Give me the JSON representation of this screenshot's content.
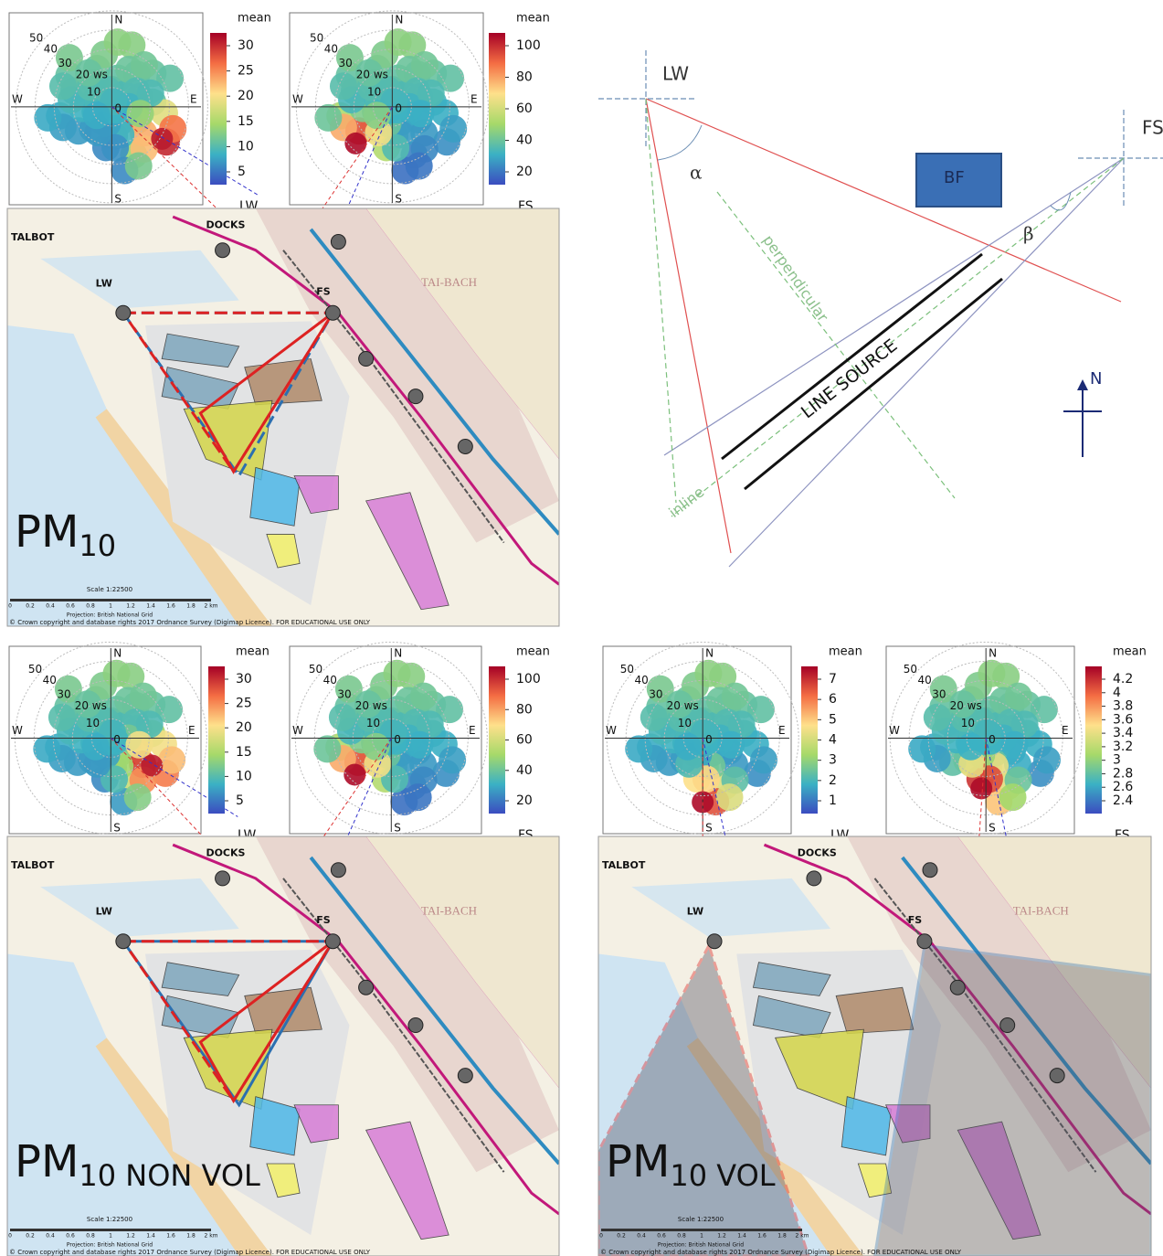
{
  "panels": [
    {
      "polar_plots": [
        {
          "radial_labels": [
            "50",
            "40",
            "30",
            "20 ws",
            "10",
            "0"
          ],
          "compass": [
            "N",
            "E",
            "S",
            "W"
          ],
          "legend_title": "mean",
          "colorbar_ticks": [
            30,
            25,
            20,
            15,
            10,
            5
          ],
          "site": "LW"
        },
        {
          "radial_labels": [
            "50",
            "40",
            "30",
            "20 ws",
            "10",
            "0"
          ],
          "compass": [
            "N",
            "E",
            "S",
            "W"
          ],
          "legend_title": "mean",
          "colorbar_ticks": [
            100,
            80,
            60,
            40,
            20
          ],
          "site": "FS"
        }
      ],
      "map": {
        "places": [
          "TALBOT",
          "DOCKS",
          "LW",
          "FS",
          "TAI-BACH"
        ],
        "pollutant": "PM",
        "subscript": "10",
        "scale_title": "Scale 1:22500",
        "scale_ticks": [
          "0",
          "0.2",
          "0.4",
          "0.6",
          "0.8",
          "1",
          "1.2",
          "1.4",
          "1.6",
          "1.8",
          "2 km"
        ],
        "projection": "Projection: British National Grid",
        "copyright": "© Crown copyright and database rights 2017 Ordnance Survey (Digimap Licence). FOR EDUCATIONAL USE ONLY"
      }
    },
    {
      "polar_plots": [
        {
          "radial_labels": [
            "50",
            "40",
            "30",
            "20 ws",
            "10",
            "0"
          ],
          "compass": [
            "N",
            "E",
            "S",
            "W"
          ],
          "legend_title": "mean",
          "colorbar_ticks": [
            30,
            25,
            20,
            15,
            10,
            5
          ],
          "site": "LW"
        },
        {
          "radial_labels": [
            "50",
            "40",
            "30",
            "20 ws",
            "10",
            "0"
          ],
          "compass": [
            "N",
            "E",
            "S",
            "W"
          ],
          "legend_title": "mean",
          "colorbar_ticks": [
            100,
            80,
            60,
            40,
            20
          ],
          "site": "FS"
        }
      ],
      "map": {
        "places": [
          "TALBOT",
          "DOCKS",
          "LW",
          "FS",
          "TAI-BACH"
        ],
        "pollutant": "PM",
        "subscript": "10 NON VOL",
        "scale_title": "Scale 1:22500",
        "scale_ticks": [
          "0",
          "0.2",
          "0.4",
          "0.6",
          "0.8",
          "1",
          "1.2",
          "1.4",
          "1.6",
          "1.8",
          "2 km"
        ],
        "projection": "Projection: British National Grid",
        "copyright": "© Crown copyright and database rights 2017 Ordnance Survey (Digimap Licence). FOR EDUCATIONAL USE ONLY"
      }
    },
    {
      "polar_plots": [
        {
          "radial_labels": [
            "50",
            "40",
            "30",
            "20 ws",
            "10",
            "0"
          ],
          "compass": [
            "N",
            "E",
            "S",
            "W"
          ],
          "legend_title": "mean",
          "colorbar_ticks": [
            7,
            6,
            5,
            4,
            3,
            2,
            1
          ],
          "site": "LW"
        },
        {
          "radial_labels": [
            "50",
            "40",
            "30",
            "20 ws",
            "10",
            "0"
          ],
          "compass": [
            "N",
            "E",
            "S",
            "W"
          ],
          "legend_title": "mean",
          "colorbar_ticks": [
            4.2,
            4,
            3.8,
            3.6,
            3.4,
            3.2,
            3,
            2.8,
            2.6,
            2.4
          ],
          "site": "FS"
        }
      ],
      "map": {
        "places": [
          "TALBOT",
          "DOCKS",
          "LW",
          "FS",
          "TAI-BACH"
        ],
        "pollutant": "PM",
        "subscript": "10 VOL",
        "scale_title": "Scale 1:22500",
        "scale_ticks": [
          "0",
          "0.2",
          "0.4",
          "0.6",
          "0.8",
          "1",
          "1.2",
          "1.4",
          "1.6",
          "1.8",
          "2 km"
        ],
        "projection": "Projection: British National Grid",
        "copyright": "© Crown copyright and database rights 2017 Ordnance Survey (Digimap Licence). FOR EDUCATIONAL USE ONLY"
      }
    }
  ],
  "diagram": {
    "receptors": [
      "LW",
      "FS"
    ],
    "building": "BF",
    "angles": [
      "α",
      "β"
    ],
    "labels": [
      "perpendicular",
      "LINE SOURCE",
      "inline"
    ],
    "north": "N"
  }
}
